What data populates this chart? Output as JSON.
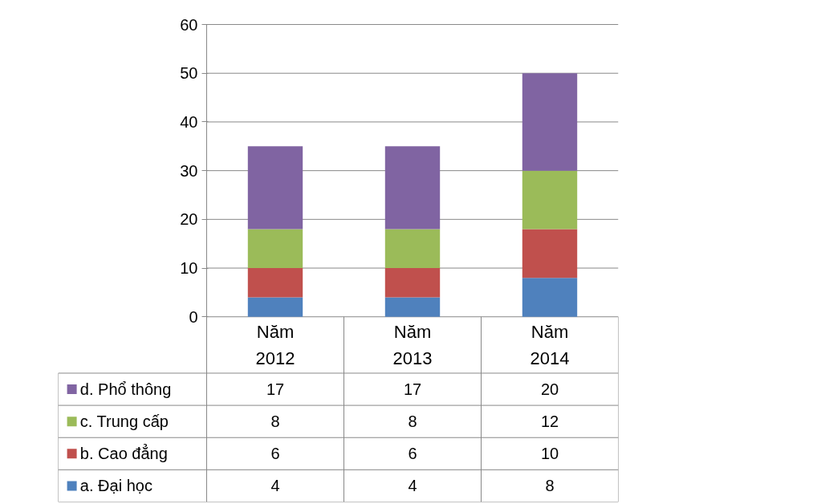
{
  "chart_data": {
    "type": "bar",
    "stacked": true,
    "categories": [
      "Năm\n2012",
      "Năm\n2013",
      "Năm\n2014"
    ],
    "series": [
      {
        "name": "a. Đại học",
        "color": "#4f81bd",
        "values": [
          4,
          4,
          8
        ]
      },
      {
        "name": "b. Cao đẳng",
        "color": "#c0504d",
        "values": [
          6,
          6,
          10
        ]
      },
      {
        "name": "c. Trung cấp",
        "color": "#9bbb59",
        "values": [
          8,
          8,
          12
        ]
      },
      {
        "name": "d. Phổ thông",
        "color": "#8064a2",
        "values": [
          17,
          17,
          20
        ]
      }
    ],
    "ylim": [
      0,
      60
    ],
    "yticks": [
      0,
      10,
      20,
      30,
      40,
      50,
      60
    ],
    "grid": "y",
    "legend": "bottom",
    "data_labels": true
  }
}
